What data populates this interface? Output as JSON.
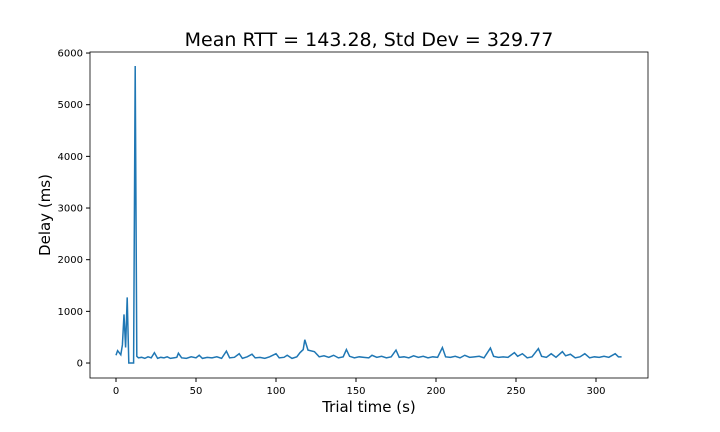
{
  "chart_data": {
    "type": "line",
    "title": "Mean RTT = 143.28, Std Dev = 329.77",
    "x_label": "Trial time (s)",
    "y_label": "Delay (ms)",
    "color": "#1f77b4",
    "x": [
      0,
      1,
      2,
      3,
      4,
      5,
      6,
      7,
      8,
      9,
      10,
      11,
      12,
      13,
      14,
      16,
      18,
      20,
      22,
      24,
      26,
      28,
      30,
      32,
      34,
      36,
      38,
      39,
      41,
      44,
      47,
      50,
      52,
      54,
      57,
      60,
      63,
      66,
      69,
      71,
      74,
      77,
      79,
      82,
      85,
      87,
      90,
      93,
      96,
      100,
      102,
      105,
      107,
      110,
      113,
      115,
      117,
      118,
      120,
      124,
      127,
      130,
      133,
      136,
      139,
      142,
      144,
      146,
      149,
      152,
      155,
      158,
      160,
      163,
      166,
      169,
      172,
      175,
      177,
      180,
      183,
      186,
      189,
      192,
      195,
      198,
      201,
      204,
      206,
      209,
      212,
      215,
      218,
      221,
      224,
      227,
      230,
      234,
      236,
      239,
      242,
      245,
      249,
      251,
      254,
      257,
      260,
      264,
      266,
      269,
      272,
      275,
      279,
      281,
      284,
      287,
      290,
      293,
      296,
      299,
      302,
      305,
      308,
      312,
      314,
      316
    ],
    "values": [
      150,
      240,
      200,
      160,
      350,
      940,
      300,
      1270,
      0,
      0,
      0,
      0,
      5750,
      130,
      100,
      110,
      90,
      120,
      100,
      200,
      90,
      110,
      100,
      120,
      90,
      100,
      110,
      190,
      100,
      90,
      120,
      100,
      150,
      90,
      110,
      100,
      120,
      90,
      230,
      100,
      110,
      180,
      90,
      120,
      170,
      100,
      110,
      90,
      120,
      180,
      100,
      110,
      150,
      90,
      120,
      200,
      260,
      450,
      250,
      220,
      120,
      140,
      110,
      150,
      100,
      120,
      260,
      130,
      100,
      120,
      110,
      100,
      150,
      110,
      130,
      100,
      120,
      250,
      110,
      120,
      100,
      140,
      110,
      130,
      100,
      120,
      110,
      300,
      120,
      110,
      130,
      100,
      150,
      110,
      120,
      130,
      100,
      290,
      130,
      110,
      120,
      110,
      200,
      130,
      180,
      100,
      120,
      280,
      130,
      110,
      180,
      110,
      220,
      140,
      170,
      100,
      120,
      180,
      100,
      120,
      110,
      130,
      110,
      180,
      120,
      120
    ],
    "xlim": [
      -16.25,
      332.5
    ],
    "ylim": [
      -290,
      6020
    ],
    "xticks": [
      0,
      50,
      100,
      150,
      200,
      250,
      300
    ],
    "yticks": [
      0,
      1000,
      2000,
      3000,
      4000,
      5000,
      6000
    ]
  }
}
